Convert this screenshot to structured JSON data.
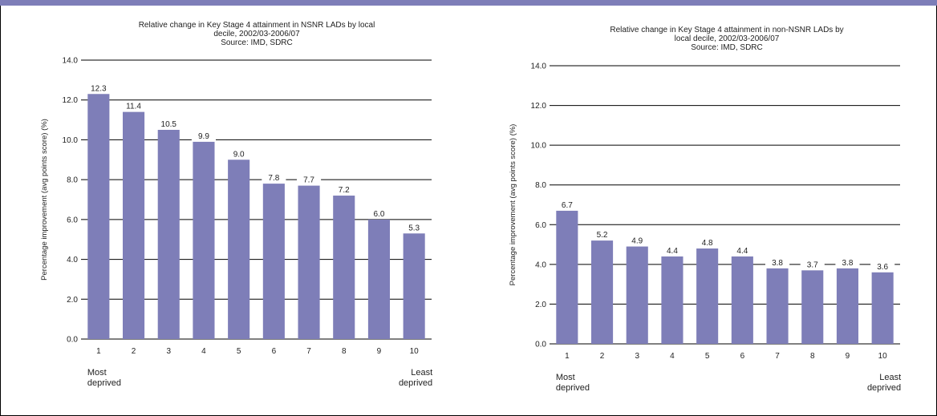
{
  "colors": {
    "bar": "#7e7eb8",
    "header_band": "#7e7eb8",
    "grid": "#000000",
    "text": "#222222"
  },
  "chart_data": [
    {
      "type": "bar",
      "title": "Relative change in Key Stage 4 attainment in NSNR LADs by local decile, 2002/03-2006/07",
      "title_lines": [
        "Relative change in Key Stage 4 attainment in NSNR LADs by local",
        "decile, 2002/03-2006/07"
      ],
      "subtitle": "Source: IMD, SDRC",
      "xlabel": "",
      "ylabel": "Percentage improvement (avg points score) (%)",
      "categories": [
        "1",
        "2",
        "3",
        "4",
        "5",
        "6",
        "7",
        "8",
        "9",
        "10"
      ],
      "values": [
        12.3,
        11.4,
        10.5,
        9.9,
        9.0,
        7.8,
        7.7,
        7.2,
        6.0,
        5.3
      ],
      "value_labels": [
        "12.3",
        "11.4",
        "10.5",
        "9.9",
        "9.0",
        "7.8",
        "7.7",
        "7.2",
        "6.0",
        "5.3"
      ],
      "ylim": [
        0,
        14
      ],
      "yticks": [
        "0.0",
        "2.0",
        "4.0",
        "6.0",
        "8.0",
        "10.0",
        "12.0",
        "14.0"
      ],
      "grid": true,
      "annotations": {
        "left_lines": [
          "Most",
          "deprived"
        ],
        "right_lines": [
          "Least",
          "deprived"
        ]
      }
    },
    {
      "type": "bar",
      "title": "Relative change in Key Stage 4 attainment in non-NSNR LADs by local decile, 2002/03-2006/07",
      "title_lines": [
        "Relative change in Key Stage 4 attainment in non-NSNR LADs by",
        "local decile, 2002/03-2006/07"
      ],
      "subtitle": "Source: IMD, SDRC",
      "xlabel": "",
      "ylabel": "Percentage improvement (avg points score) (%)",
      "categories": [
        "1",
        "2",
        "3",
        "4",
        "5",
        "6",
        "7",
        "8",
        "9",
        "10"
      ],
      "values": [
        6.7,
        5.2,
        4.9,
        4.4,
        4.8,
        4.4,
        3.8,
        3.7,
        3.8,
        3.6
      ],
      "value_labels": [
        "6.7",
        "5.2",
        "4.9",
        "4.4",
        "4.8",
        "4.4",
        "3.8",
        "3.7",
        "3.8",
        "3.6"
      ],
      "ylim": [
        0,
        14
      ],
      "yticks": [
        "0.0",
        "2.0",
        "4.0",
        "6.0",
        "8.0",
        "10.0",
        "12.0",
        "14.0"
      ],
      "grid": true,
      "annotations": {
        "left_lines": [
          "Most",
          "deprived"
        ],
        "right_lines": [
          "Least",
          "deprived"
        ]
      }
    }
  ]
}
